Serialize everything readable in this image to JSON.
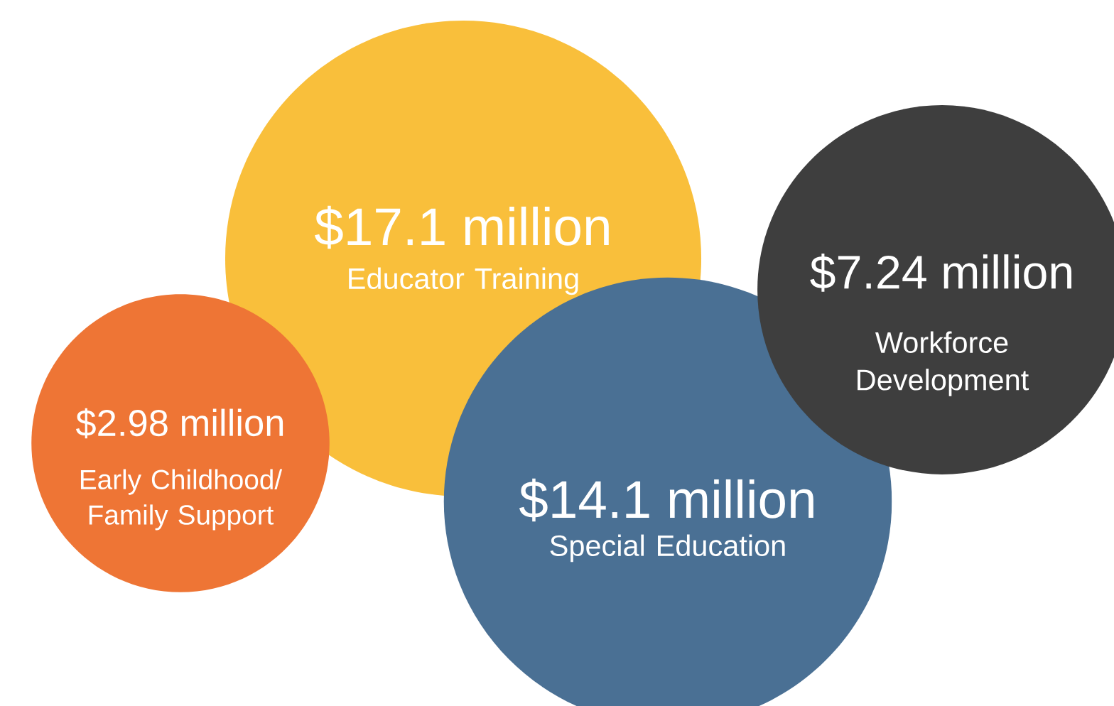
{
  "chart_data": {
    "type": "other",
    "categories": [
      "Educator Training",
      "Workforce Development",
      "Early Childhood/ Family Support",
      "Special Education"
    ],
    "values": [
      17.1,
      7.24,
      2.98,
      14.1
    ],
    "value_labels": [
      "$17.1 million",
      "$7.24 million",
      "$2.98 million",
      "$14.1 million"
    ],
    "colors": [
      "#f9bf3b",
      "#3e3e3e",
      "#ee7535",
      "#4a7094"
    ]
  }
}
